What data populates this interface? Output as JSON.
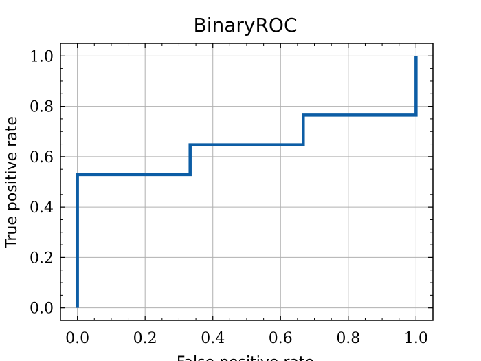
{
  "chart_data": {
    "type": "line",
    "title": "BinaryROC",
    "xlabel": "False positive rate",
    "ylabel": "True positive rate",
    "xlim": [
      -0.05,
      1.05
    ],
    "ylim": [
      -0.05,
      1.05
    ],
    "x_ticks": [
      "0.0",
      "0.2",
      "0.4",
      "0.6",
      "0.8",
      "1.0"
    ],
    "y_ticks": [
      "0.0",
      "0.2",
      "0.4",
      "0.6",
      "0.8",
      "1.0"
    ],
    "grid": true,
    "legend": "none",
    "series": [
      {
        "color": "#0c5da5",
        "x": [
          0.0,
          0.0,
          0.333,
          0.333,
          0.667,
          0.667,
          1.0,
          1.0
        ],
        "y": [
          0.0,
          0.529,
          0.529,
          0.647,
          0.647,
          0.765,
          0.765,
          1.0
        ]
      }
    ]
  }
}
